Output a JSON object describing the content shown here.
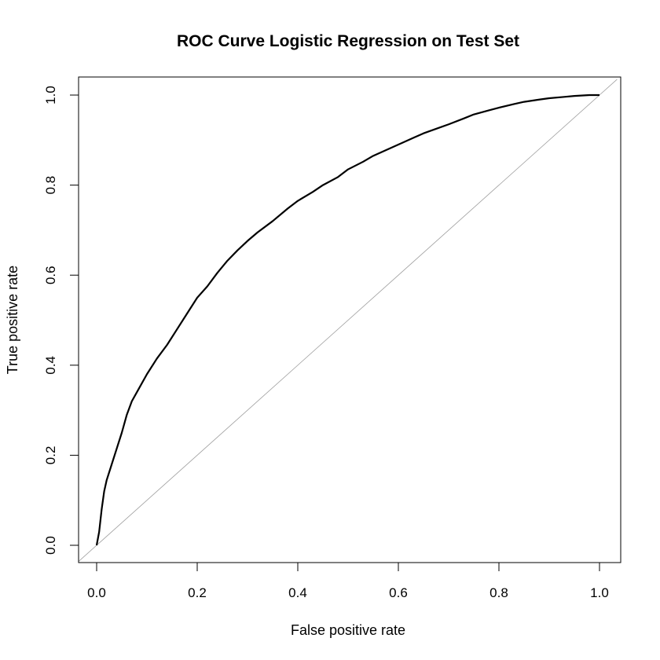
{
  "chart_data": {
    "type": "line",
    "title": "ROC Curve Logistic Regression on Test Set",
    "xlabel": "False positive rate",
    "ylabel": "True positive rate",
    "xlim": [
      0,
      1
    ],
    "ylim": [
      0,
      1
    ],
    "xticks": [
      "0.0",
      "0.2",
      "0.4",
      "0.6",
      "0.8",
      "1.0"
    ],
    "yticks": [
      "0.0",
      "0.2",
      "0.4",
      "0.6",
      "0.8",
      "1.0"
    ],
    "grid": false,
    "legend": "none",
    "series": [
      {
        "role": "roc-curve",
        "color": "#000000",
        "points": [
          [
            0.0,
            0.0
          ],
          [
            0.005,
            0.03
          ],
          [
            0.01,
            0.08
          ],
          [
            0.015,
            0.12
          ],
          [
            0.02,
            0.145
          ],
          [
            0.03,
            0.18
          ],
          [
            0.04,
            0.215
          ],
          [
            0.05,
            0.25
          ],
          [
            0.06,
            0.29
          ],
          [
            0.07,
            0.32
          ],
          [
            0.085,
            0.35
          ],
          [
            0.1,
            0.38
          ],
          [
            0.12,
            0.415
          ],
          [
            0.14,
            0.445
          ],
          [
            0.16,
            0.48
          ],
          [
            0.18,
            0.515
          ],
          [
            0.2,
            0.55
          ],
          [
            0.22,
            0.575
          ],
          [
            0.24,
            0.605
          ],
          [
            0.26,
            0.632
          ],
          [
            0.28,
            0.655
          ],
          [
            0.3,
            0.676
          ],
          [
            0.32,
            0.695
          ],
          [
            0.35,
            0.72
          ],
          [
            0.38,
            0.748
          ],
          [
            0.4,
            0.765
          ],
          [
            0.43,
            0.785
          ],
          [
            0.45,
            0.8
          ],
          [
            0.48,
            0.818
          ],
          [
            0.5,
            0.835
          ],
          [
            0.53,
            0.852
          ],
          [
            0.55,
            0.865
          ],
          [
            0.58,
            0.88
          ],
          [
            0.6,
            0.89
          ],
          [
            0.63,
            0.905
          ],
          [
            0.65,
            0.915
          ],
          [
            0.68,
            0.927
          ],
          [
            0.7,
            0.935
          ],
          [
            0.73,
            0.948
          ],
          [
            0.75,
            0.957
          ],
          [
            0.78,
            0.966
          ],
          [
            0.8,
            0.972
          ],
          [
            0.83,
            0.98
          ],
          [
            0.85,
            0.985
          ],
          [
            0.88,
            0.99
          ],
          [
            0.9,
            0.993
          ],
          [
            0.93,
            0.996
          ],
          [
            0.95,
            0.998
          ],
          [
            0.98,
            1.0
          ],
          [
            1.0,
            1.0
          ]
        ]
      },
      {
        "role": "diagonal-reference",
        "color": "#9e9e9e",
        "points": [
          [
            -0.035,
            -0.035
          ],
          [
            1.035,
            1.035
          ]
        ]
      }
    ]
  }
}
